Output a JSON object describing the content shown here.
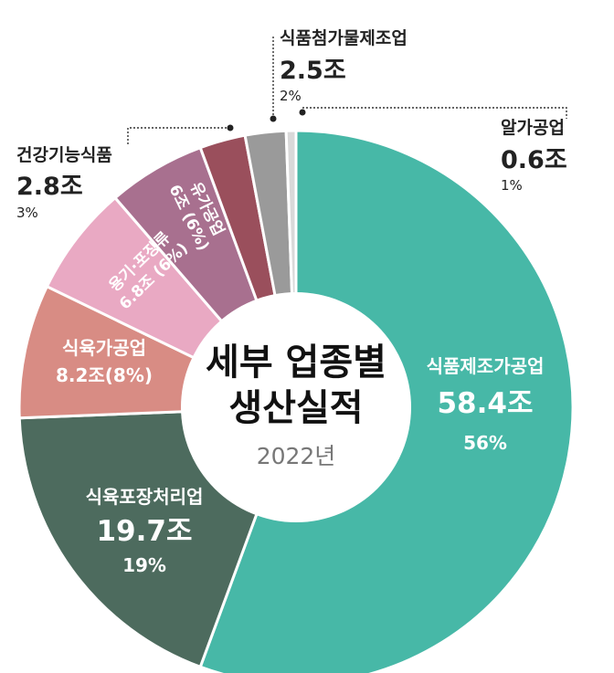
{
  "center": {
    "title_line1": "세부 업종별",
    "title_line2": "생산실적",
    "year": "2022년"
  },
  "chart_data": {
    "type": "pie",
    "donut": true,
    "slices": [
      {
        "key": "food_mfg",
        "label": "식품제조가공업",
        "value_text": "58.4조",
        "pct_text": "56%",
        "value": 58.4,
        "color": "#47b8a7"
      },
      {
        "key": "meat_pack",
        "label": "식육포장처리업",
        "value_text": "19.7조",
        "pct_text": "19%",
        "value": 19.7,
        "color": "#4d6b5e"
      },
      {
        "key": "meat_proc",
        "label": "식육가공업",
        "value_text": "8.2조(8%)",
        "value": 8.2,
        "color": "#d88c84"
      },
      {
        "key": "container",
        "label": "용기·포장류",
        "value_text": "6.8조 (6%)",
        "value": 6.8,
        "color": "#e9a9c3"
      },
      {
        "key": "milk_proc",
        "label": "유가공업",
        "value_text": "6조 (6%)",
        "value": 6.0,
        "color": "#a8708f"
      },
      {
        "key": "health",
        "label": "건강기능식품",
        "value_text": "2.8조",
        "pct_text": "3%",
        "value": 2.8,
        "color": "#9a4f5c"
      },
      {
        "key": "additive",
        "label": "식품첨가물제조업",
        "value_text": "2.5조",
        "pct_text": "2%",
        "value": 2.5,
        "color": "#9a9a9a"
      },
      {
        "key": "egg",
        "label": "알가공업",
        "value_text": "0.6조",
        "pct_text": "1%",
        "value": 0.6,
        "color": "#d9d9d9"
      }
    ]
  }
}
